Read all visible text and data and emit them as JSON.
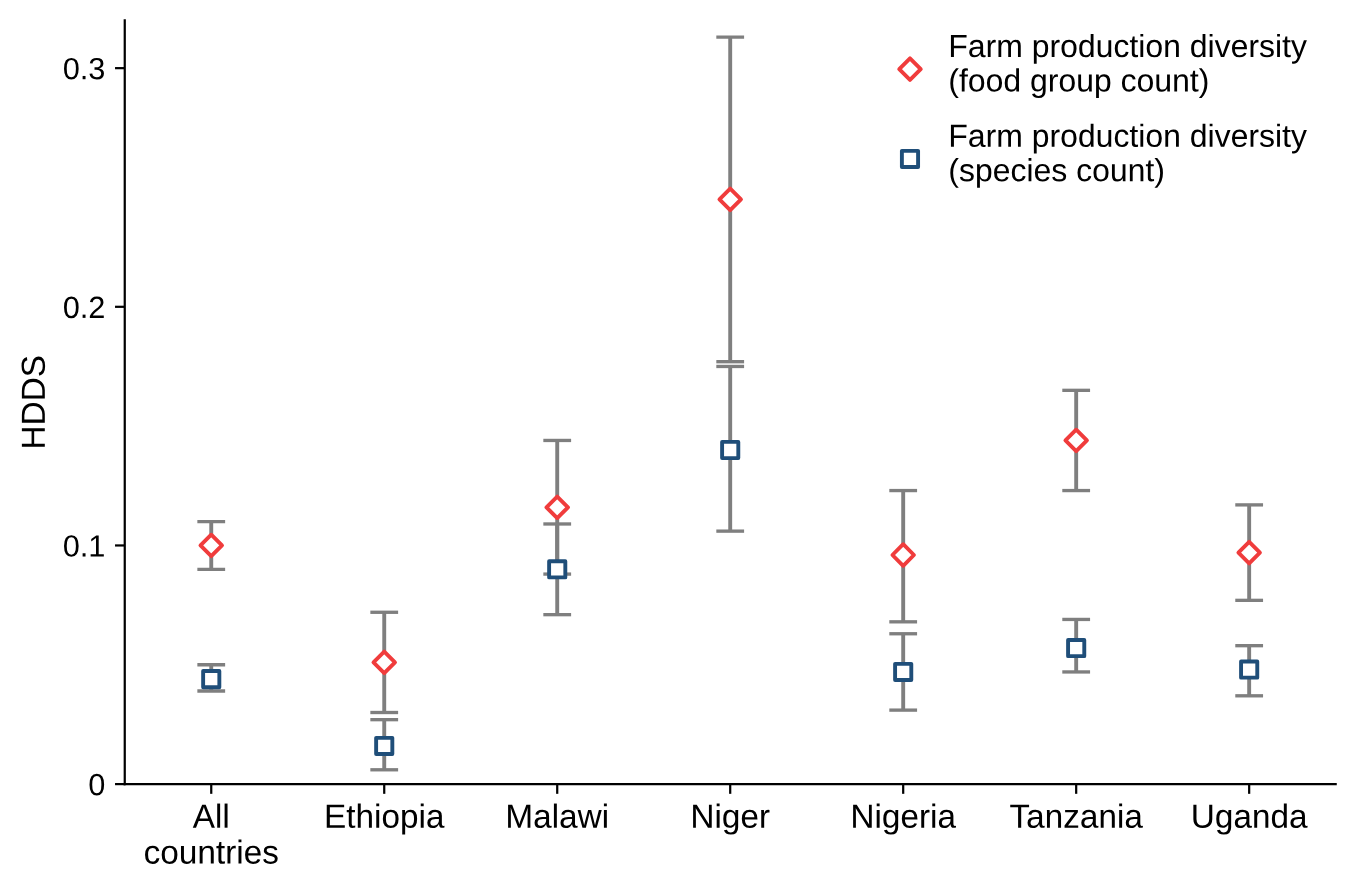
{
  "chart_data": {
    "type": "scatter",
    "ylabel": "HDDS",
    "categories": [
      "All\ncountries",
      "Ethiopia",
      "Malawi",
      "Niger",
      "Nigeria",
      "Tanzania",
      "Uganda"
    ],
    "series": [
      {
        "name": "Farm production diversity\n(food group count)",
        "color": "#f03c3c",
        "marker": "diamond",
        "values": [
          0.1,
          0.051,
          0.116,
          0.245,
          0.096,
          0.144,
          0.097
        ],
        "errors": [
          [
            0.09,
            0.11
          ],
          [
            0.03,
            0.072
          ],
          [
            0.088,
            0.144
          ],
          [
            0.177,
            0.313
          ],
          [
            0.068,
            0.123
          ],
          [
            0.123,
            0.165
          ],
          [
            0.077,
            0.117
          ]
        ]
      },
      {
        "name": "Farm production diversity\n(species count)",
        "color": "#1f4e79",
        "marker": "square",
        "values": [
          0.044,
          0.016,
          0.09,
          0.14,
          0.047,
          0.057,
          0.048
        ],
        "errors": [
          [
            0.039,
            0.05
          ],
          [
            0.006,
            0.027
          ],
          [
            0.071,
            0.109
          ],
          [
            0.106,
            0.175
          ],
          [
            0.031,
            0.063
          ],
          [
            0.047,
            0.069
          ],
          [
            0.037,
            0.058
          ]
        ]
      }
    ],
    "ylim": [
      0,
      0.32
    ],
    "yticks": [
      0,
      0.1,
      0.2,
      0.3
    ],
    "grid": false,
    "legend": "top right"
  }
}
